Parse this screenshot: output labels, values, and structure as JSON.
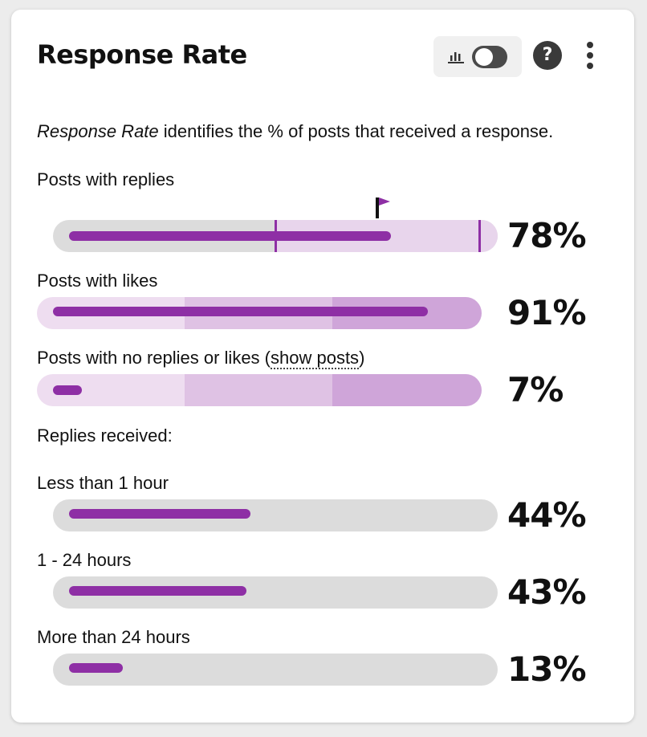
{
  "header": {
    "title": "Response Rate",
    "chart_toggle_icon": "bar-chart-icon",
    "help_icon": "question-circle-icon",
    "help_label": "?",
    "more_icon": "vertical-ellipsis-icon"
  },
  "description": {
    "emphasis": "Response Rate",
    "text": " identifies the % of posts that received a response."
  },
  "metrics": {
    "replies": {
      "label": "Posts with replies",
      "value": 78,
      "display": "78%",
      "flag_icon": "flag-icon"
    },
    "likes": {
      "label": "Posts with likes",
      "value": 91,
      "display": "91%"
    },
    "none": {
      "label_prefix": "Posts with no replies or likes (",
      "link": "show posts",
      "label_suffix": ")",
      "value": 7,
      "display": "7%"
    }
  },
  "replies_received": {
    "heading": "Replies received:",
    "items": [
      {
        "label": "Less than 1 hour",
        "value": 44,
        "display": "44%"
      },
      {
        "label": "1 - 24 hours",
        "value": 43,
        "display": "43%"
      },
      {
        "label": "More than 24 hours",
        "value": 13,
        "display": "13%"
      }
    ]
  },
  "colors": {
    "accent": "#8e2fa5",
    "track_gray": "#dcdcdc",
    "band_light": "#eeddf0",
    "band_mid": "#dfc2e4",
    "band_dark": "#cfa5d9"
  }
}
